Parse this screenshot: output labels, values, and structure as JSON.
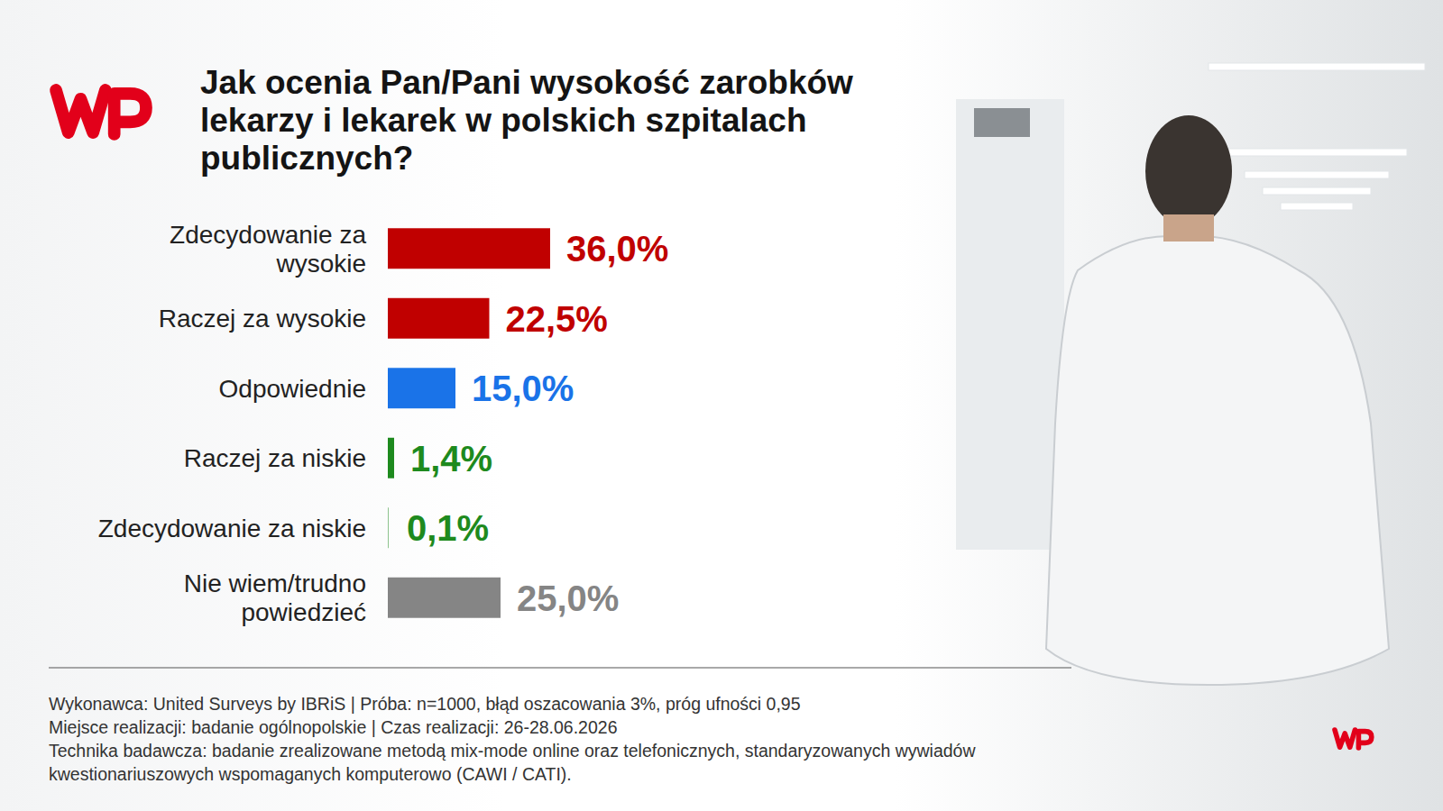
{
  "chart_data": {
    "type": "bar",
    "orientation": "horizontal",
    "title": "Jak ocenia Pan/Pani wysokość zarobków lekarzy i lekarek w polskich szpitalach publicznych?",
    "categories": [
      "Zdecydowanie za wysokie",
      "Raczej za wysokie",
      "Odpowiednie",
      "Raczej za niskie",
      "Zdecydowanie za niskie",
      "Nie wiem/trudno powiedzieć"
    ],
    "values": [
      36.0,
      22.5,
      15.0,
      1.4,
      0.1,
      25.0
    ],
    "value_labels": [
      "36,0%",
      "22,5%",
      "15,0%",
      "1,4%",
      "0,1%",
      "25,0%"
    ],
    "colors": [
      "#c00000",
      "#c00000",
      "#1a73e8",
      "#1e8a1e",
      "#1e8a1e",
      "#858585"
    ],
    "data_labels": true,
    "tick_labels": false,
    "grid": false,
    "notes": [
      "Wykonawca: United Surveys by IBRiS | Próba: n=1000, błąd oszacowania 3%, próg ufności 0,95",
      "Miejsce realizacji: badanie ogólnopolskie | Czas realizacji: 26-28.06.2026",
      "Technika badawcza: badanie zrealizowane metodą mix-mode online oraz telefonicznych, standaryzowanych wywiadów kwestionariuszowych wspomaganych komputerowo (CAWI / CATI)."
    ]
  }
}
